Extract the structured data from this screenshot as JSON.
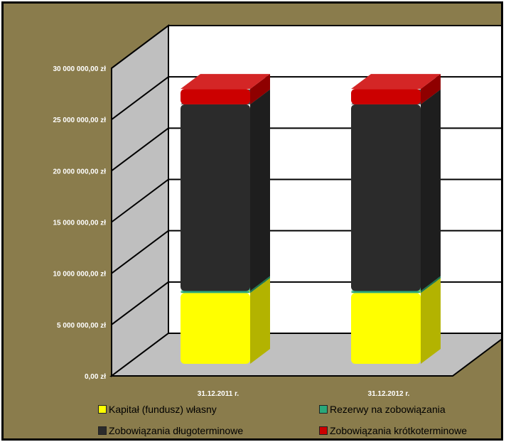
{
  "chart_data": {
    "type": "bar",
    "stacked": true,
    "three_d": true,
    "categories": [
      "31.12.2011 r.",
      "31.12.2012 r."
    ],
    "series": [
      {
        "name": "Kapitał (fundusz) własny",
        "color": "#ffff00",
        "values": [
          6900000,
          6900000
        ]
      },
      {
        "name": "Rezerwy na zobowiązania",
        "color": "#2aa87a",
        "values": [
          200000,
          200000
        ]
      },
      {
        "name": "Zobowiązania długoterminowe",
        "color": "#2b2b2b",
        "values": [
          18200000,
          18200000
        ]
      },
      {
        "name": "Zobowiązania krótkoterminowe",
        "color": "#cc0000",
        "values": [
          1500000,
          1500000
        ]
      }
    ],
    "y_ticks": [
      "0,00 zł",
      "5 000 000,00 zł",
      "10 000 000,00 zł",
      "15 000 000,00 zł",
      "20 000 000,00 zł",
      "25 000 000,00 zł",
      "30 000 000,00 zł"
    ],
    "ylim": [
      0,
      30000000
    ],
    "grid": true,
    "legend_position": "bottom",
    "colors": {
      "background": "#8a7c4c",
      "wall": "#ffffff",
      "side_wall": "#bfbfbf",
      "floor": "#c0c0c0"
    }
  }
}
